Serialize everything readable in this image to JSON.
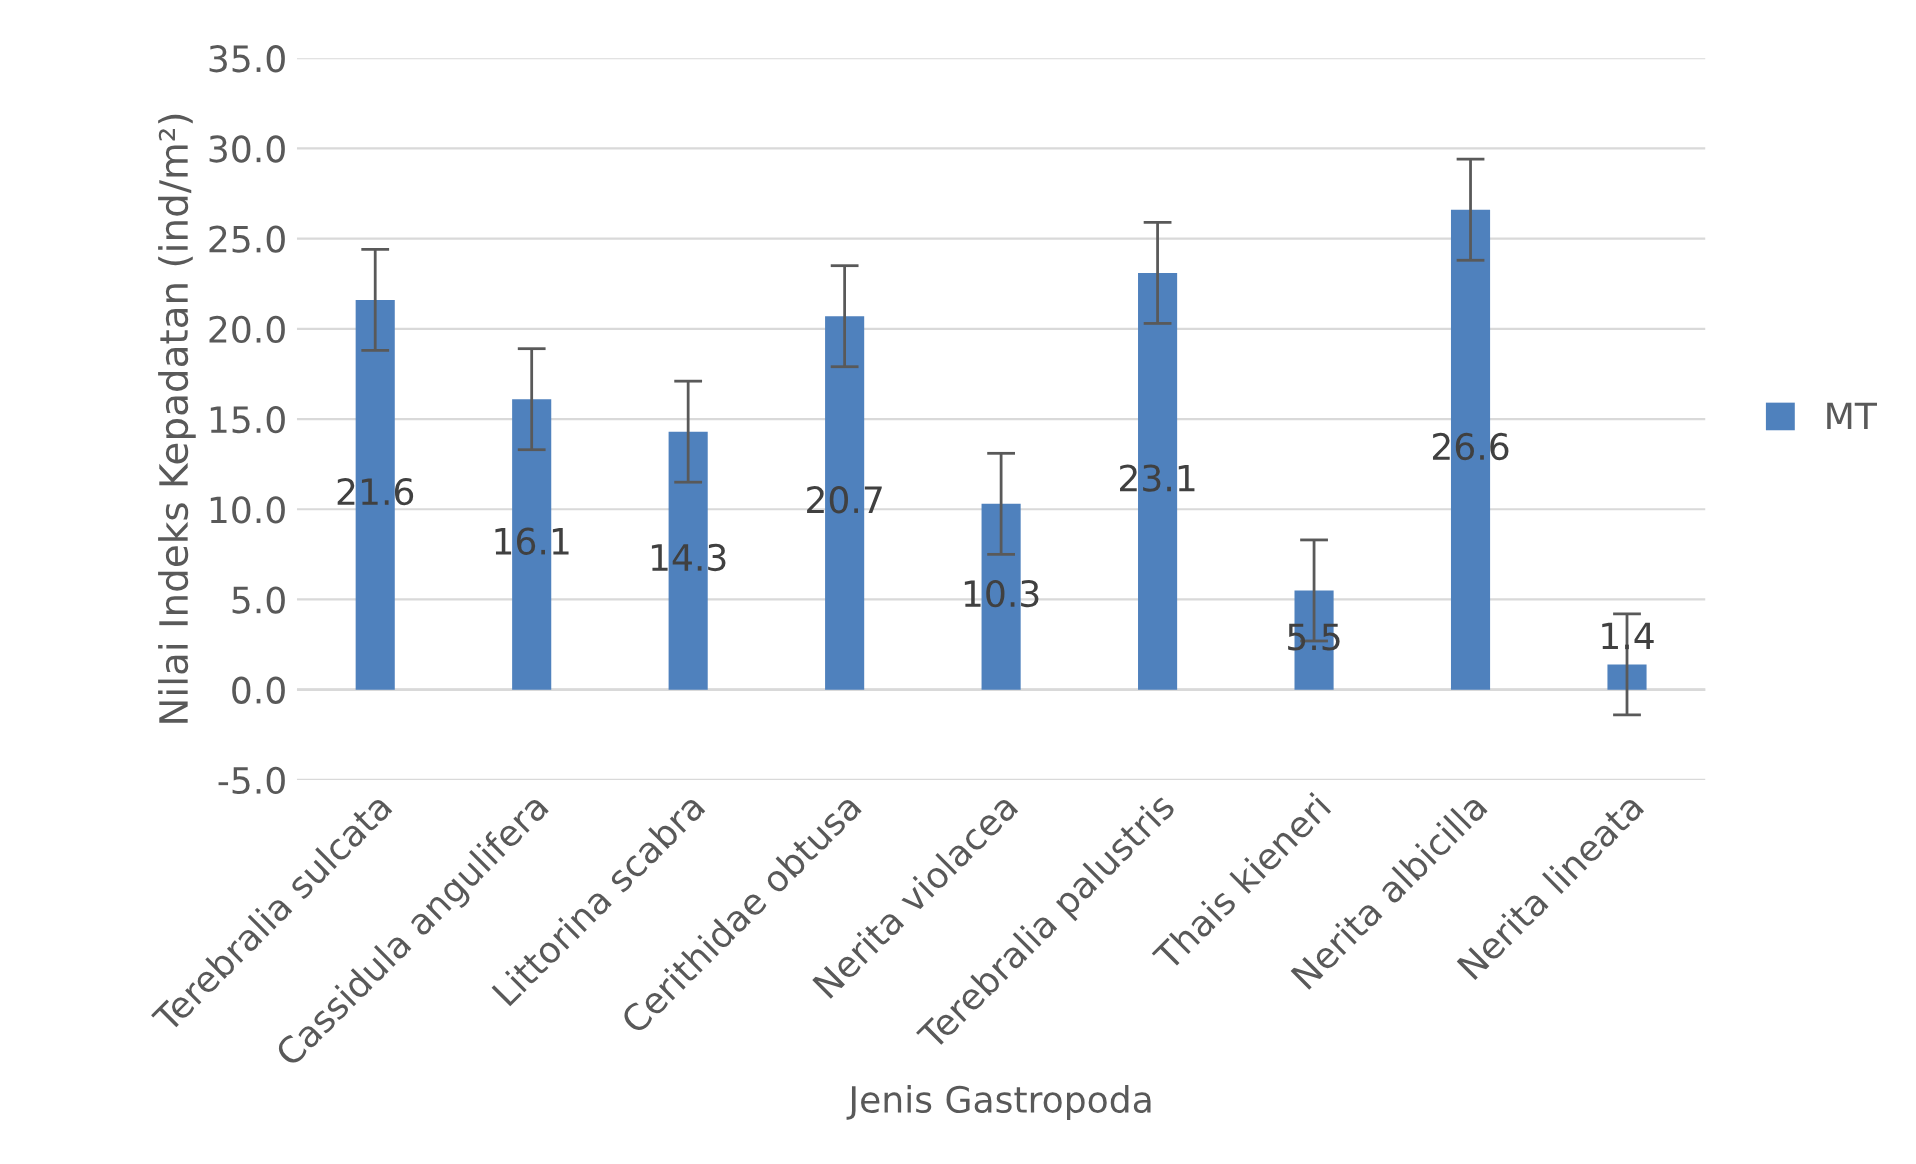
{
  "chart_data": {
    "type": "bar",
    "xlabel": "Jenis Gastropoda",
    "ylabel": "Nilai Indeks Kepadatan (ind/m²)",
    "categories": [
      "Terebralia sulcata",
      "Cassidula angulifera",
      "Littorina scabra",
      "Cerithidae obtusa",
      "Nerita violacea",
      "Terebralia palustris",
      "Thais kieneri",
      "Nerita albicilla",
      "Nerita lineata"
    ],
    "series": [
      {
        "name": "MT",
        "color": "#4f81bd",
        "values": [
          21.6,
          16.1,
          14.3,
          20.7,
          10.3,
          23.1,
          5.5,
          26.6,
          1.4
        ],
        "errors": [
          2.8,
          2.8,
          2.8,
          2.8,
          2.8,
          2.8,
          2.8,
          2.8,
          2.8
        ]
      }
    ],
    "data_labels": true,
    "ylim": [
      -5,
      35
    ],
    "yticks": [
      {
        "value": -5,
        "label": "-5.0"
      },
      {
        "value": 0,
        "label": "0.0"
      },
      {
        "value": 5,
        "label": "5.0"
      },
      {
        "value": 10,
        "label": "10.0"
      },
      {
        "value": 15,
        "label": "15.0"
      },
      {
        "value": 20,
        "label": "20.0"
      },
      {
        "value": 25,
        "label": "25.0"
      },
      {
        "value": 30,
        "label": "30.0"
      },
      {
        "value": 35,
        "label": "35.0"
      }
    ],
    "grid": "y",
    "legend": "right"
  }
}
